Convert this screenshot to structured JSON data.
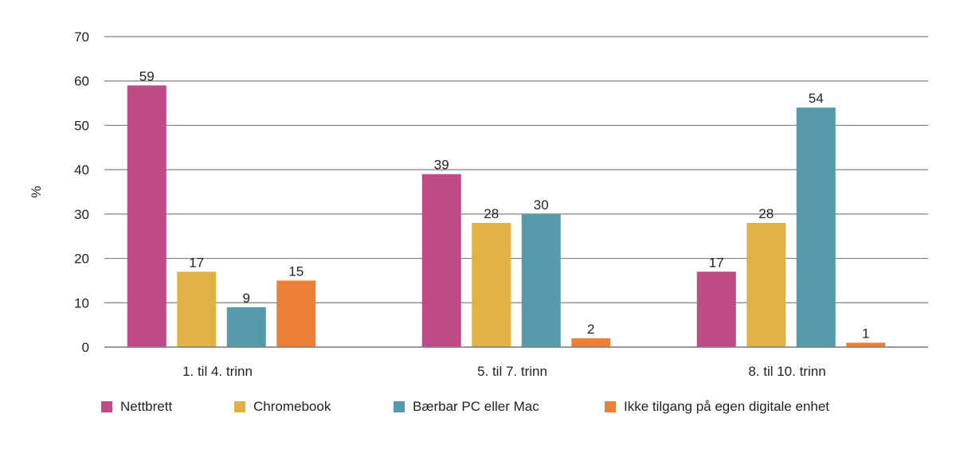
{
  "chart_data": {
    "type": "bar",
    "title": "",
    "xlabel": "",
    "ylabel": "%",
    "ylim": [
      0,
      70
    ],
    "yticks": [
      0,
      10,
      20,
      30,
      40,
      50,
      60,
      70
    ],
    "grid": true,
    "legend_position": "bottom",
    "categories": [
      "1. til 4. trinn",
      "5. til 7. trinn",
      "8. til 10. trinn"
    ],
    "series": [
      {
        "name": "Nettbrett",
        "color": "#be4a86",
        "values": [
          59,
          39,
          17
        ]
      },
      {
        "name": "Chromebook",
        "color": "#e0b245",
        "values": [
          17,
          28,
          28
        ]
      },
      {
        "name": "Bærbar PC eller Mac",
        "color": "#579aae",
        "values": [
          9,
          30,
          54
        ]
      },
      {
        "name": "Ikke tilgang på egen digitale enhet",
        "color": "#ed7f36",
        "values": [
          15,
          2,
          1
        ]
      }
    ],
    "data_labels": true
  }
}
